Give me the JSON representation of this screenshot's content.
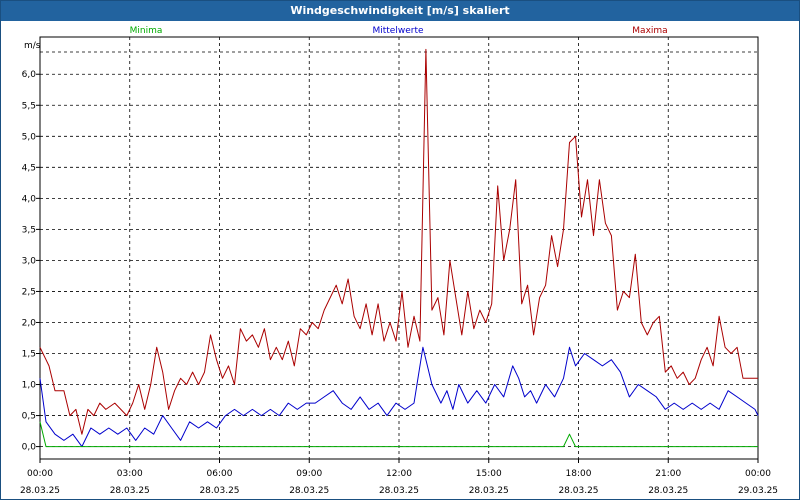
{
  "window": {
    "title": "Windgeschwindigkeit [m/s] skaliert"
  },
  "chart_data": {
    "type": "line",
    "title": "Windgeschwindigkeit [m/s] skaliert",
    "ylabel": "m/s",
    "ylim": [
      -0.2,
      6.6
    ],
    "yticks": [
      "0,0",
      "0,5",
      "1,0",
      "1,5",
      "2,0",
      "2,5",
      "3,0",
      "3,5",
      "4,0",
      "4,5",
      "5,0",
      "5,5",
      "6,0"
    ],
    "xlim": [
      0,
      24
    ],
    "xticks": [
      {
        "time": "00:00",
        "date": "28.03.25"
      },
      {
        "time": "03:00",
        "date": "28.03.25"
      },
      {
        "time": "06:00",
        "date": "28.03.25"
      },
      {
        "time": "09:00",
        "date": "28.03.25"
      },
      {
        "time": "12:00",
        "date": "28.03.25"
      },
      {
        "time": "15:00",
        "date": "28.03.25"
      },
      {
        "time": "18:00",
        "date": "28.03.25"
      },
      {
        "time": "21:00",
        "date": "28.03.25"
      },
      {
        "time": "00:00",
        "date": "29.03.25"
      }
    ],
    "grid": true,
    "legend_position": "top",
    "series": [
      {
        "name": "Minima",
        "color": "#00aa00",
        "points": [
          [
            0,
            0.4
          ],
          [
            0.2,
            0
          ],
          [
            17.5,
            0
          ],
          [
            17.7,
            0.2
          ],
          [
            17.9,
            0
          ],
          [
            24,
            0
          ]
        ]
      },
      {
        "name": "Mittelwerte",
        "color": "#0000cc",
        "points": [
          [
            0,
            1.1
          ],
          [
            0.2,
            0.4
          ],
          [
            0.5,
            0.2
          ],
          [
            0.8,
            0.1
          ],
          [
            1.1,
            0.2
          ],
          [
            1.4,
            0
          ],
          [
            1.7,
            0.3
          ],
          [
            2.0,
            0.2
          ],
          [
            2.3,
            0.3
          ],
          [
            2.6,
            0.2
          ],
          [
            2.9,
            0.3
          ],
          [
            3.2,
            0.1
          ],
          [
            3.5,
            0.3
          ],
          [
            3.8,
            0.2
          ],
          [
            4.1,
            0.5
          ],
          [
            4.4,
            0.3
          ],
          [
            4.7,
            0.1
          ],
          [
            5.0,
            0.4
          ],
          [
            5.3,
            0.3
          ],
          [
            5.6,
            0.4
          ],
          [
            5.9,
            0.3
          ],
          [
            6.2,
            0.5
          ],
          [
            6.5,
            0.6
          ],
          [
            6.8,
            0.5
          ],
          [
            7.1,
            0.6
          ],
          [
            7.4,
            0.5
          ],
          [
            7.7,
            0.6
          ],
          [
            8.0,
            0.5
          ],
          [
            8.3,
            0.7
          ],
          [
            8.6,
            0.6
          ],
          [
            8.9,
            0.7
          ],
          [
            9.2,
            0.7
          ],
          [
            9.5,
            0.8
          ],
          [
            9.8,
            0.9
          ],
          [
            10.1,
            0.7
          ],
          [
            10.4,
            0.6
          ],
          [
            10.7,
            0.8
          ],
          [
            11.0,
            0.6
          ],
          [
            11.3,
            0.7
          ],
          [
            11.6,
            0.5
          ],
          [
            11.9,
            0.7
          ],
          [
            12.2,
            0.6
          ],
          [
            12.5,
            0.7
          ],
          [
            12.8,
            1.6
          ],
          [
            13.1,
            1.0
          ],
          [
            13.4,
            0.7
          ],
          [
            13.6,
            0.9
          ],
          [
            13.8,
            0.6
          ],
          [
            14.0,
            1.0
          ],
          [
            14.3,
            0.7
          ],
          [
            14.6,
            0.9
          ],
          [
            14.9,
            0.7
          ],
          [
            15.2,
            1.0
          ],
          [
            15.5,
            0.8
          ],
          [
            15.8,
            1.3
          ],
          [
            16.0,
            1.1
          ],
          [
            16.2,
            0.8
          ],
          [
            16.4,
            0.9
          ],
          [
            16.6,
            0.7
          ],
          [
            16.9,
            1.0
          ],
          [
            17.2,
            0.8
          ],
          [
            17.5,
            1.1
          ],
          [
            17.7,
            1.6
          ],
          [
            17.9,
            1.3
          ],
          [
            18.2,
            1.5
          ],
          [
            18.5,
            1.4
          ],
          [
            18.8,
            1.3
          ],
          [
            19.1,
            1.4
          ],
          [
            19.4,
            1.2
          ],
          [
            19.7,
            0.8
          ],
          [
            20.0,
            1.0
          ],
          [
            20.3,
            0.9
          ],
          [
            20.6,
            0.8
          ],
          [
            20.9,
            0.6
          ],
          [
            21.2,
            0.7
          ],
          [
            21.5,
            0.6
          ],
          [
            21.8,
            0.7
          ],
          [
            22.1,
            0.6
          ],
          [
            22.4,
            0.7
          ],
          [
            22.7,
            0.6
          ],
          [
            23.0,
            0.9
          ],
          [
            23.3,
            0.8
          ],
          [
            23.6,
            0.7
          ],
          [
            23.9,
            0.6
          ],
          [
            24.0,
            0.5
          ]
        ]
      },
      {
        "name": "Maxima",
        "color": "#aa0000",
        "points": [
          [
            0,
            1.6
          ],
          [
            0.3,
            1.3
          ],
          [
            0.5,
            0.9
          ],
          [
            0.8,
            0.9
          ],
          [
            1.0,
            0.5
          ],
          [
            1.2,
            0.6
          ],
          [
            1.4,
            0.2
          ],
          [
            1.6,
            0.6
          ],
          [
            1.8,
            0.5
          ],
          [
            2.0,
            0.7
          ],
          [
            2.2,
            0.6
          ],
          [
            2.5,
            0.7
          ],
          [
            2.7,
            0.6
          ],
          [
            2.9,
            0.5
          ],
          [
            3.1,
            0.7
          ],
          [
            3.3,
            1.0
          ],
          [
            3.5,
            0.6
          ],
          [
            3.7,
            1.0
          ],
          [
            3.9,
            1.6
          ],
          [
            4.1,
            1.2
          ],
          [
            4.3,
            0.6
          ],
          [
            4.5,
            0.9
          ],
          [
            4.7,
            1.1
          ],
          [
            4.9,
            1.0
          ],
          [
            5.1,
            1.2
          ],
          [
            5.3,
            1.0
          ],
          [
            5.5,
            1.2
          ],
          [
            5.7,
            1.8
          ],
          [
            5.9,
            1.4
          ],
          [
            6.1,
            1.1
          ],
          [
            6.3,
            1.3
          ],
          [
            6.5,
            1.0
          ],
          [
            6.7,
            1.9
          ],
          [
            6.9,
            1.7
          ],
          [
            7.1,
            1.8
          ],
          [
            7.3,
            1.6
          ],
          [
            7.5,
            1.9
          ],
          [
            7.7,
            1.4
          ],
          [
            7.9,
            1.6
          ],
          [
            8.1,
            1.4
          ],
          [
            8.3,
            1.7
          ],
          [
            8.5,
            1.3
          ],
          [
            8.7,
            1.9
          ],
          [
            8.9,
            1.8
          ],
          [
            9.1,
            2.0
          ],
          [
            9.3,
            1.9
          ],
          [
            9.5,
            2.2
          ],
          [
            9.7,
            2.4
          ],
          [
            9.9,
            2.6
          ],
          [
            10.1,
            2.3
          ],
          [
            10.3,
            2.7
          ],
          [
            10.5,
            2.1
          ],
          [
            10.7,
            1.9
          ],
          [
            10.9,
            2.3
          ],
          [
            11.1,
            1.8
          ],
          [
            11.3,
            2.3
          ],
          [
            11.5,
            1.7
          ],
          [
            11.7,
            2.0
          ],
          [
            11.9,
            1.7
          ],
          [
            12.1,
            2.5
          ],
          [
            12.3,
            1.6
          ],
          [
            12.5,
            2.1
          ],
          [
            12.7,
            1.7
          ],
          [
            12.9,
            6.4
          ],
          [
            13.1,
            2.2
          ],
          [
            13.3,
            2.4
          ],
          [
            13.5,
            1.8
          ],
          [
            13.7,
            3.0
          ],
          [
            13.9,
            2.4
          ],
          [
            14.1,
            1.8
          ],
          [
            14.3,
            2.5
          ],
          [
            14.5,
            1.9
          ],
          [
            14.7,
            2.2
          ],
          [
            14.9,
            2.0
          ],
          [
            15.1,
            2.3
          ],
          [
            15.3,
            4.2
          ],
          [
            15.5,
            3.0
          ],
          [
            15.7,
            3.5
          ],
          [
            15.9,
            4.3
          ],
          [
            16.1,
            2.3
          ],
          [
            16.3,
            2.6
          ],
          [
            16.5,
            1.8
          ],
          [
            16.7,
            2.4
          ],
          [
            16.9,
            2.6
          ],
          [
            17.1,
            3.4
          ],
          [
            17.3,
            2.9
          ],
          [
            17.5,
            3.5
          ],
          [
            17.7,
            4.9
          ],
          [
            17.9,
            5.0
          ],
          [
            18.1,
            3.7
          ],
          [
            18.3,
            4.3
          ],
          [
            18.5,
            3.4
          ],
          [
            18.7,
            4.3
          ],
          [
            18.9,
            3.6
          ],
          [
            19.1,
            3.4
          ],
          [
            19.3,
            2.2
          ],
          [
            19.5,
            2.5
          ],
          [
            19.7,
            2.4
          ],
          [
            19.9,
            3.1
          ],
          [
            20.1,
            2.0
          ],
          [
            20.3,
            1.8
          ],
          [
            20.5,
            2.0
          ],
          [
            20.7,
            2.1
          ],
          [
            20.9,
            1.2
          ],
          [
            21.1,
            1.3
          ],
          [
            21.3,
            1.1
          ],
          [
            21.5,
            1.2
          ],
          [
            21.7,
            1.0
          ],
          [
            21.9,
            1.1
          ],
          [
            22.1,
            1.4
          ],
          [
            22.3,
            1.6
          ],
          [
            22.5,
            1.3
          ],
          [
            22.7,
            2.1
          ],
          [
            22.9,
            1.6
          ],
          [
            23.1,
            1.5
          ],
          [
            23.3,
            1.6
          ],
          [
            23.5,
            1.1
          ],
          [
            23.7,
            1.1
          ],
          [
            24.0,
            1.1
          ]
        ]
      }
    ]
  }
}
